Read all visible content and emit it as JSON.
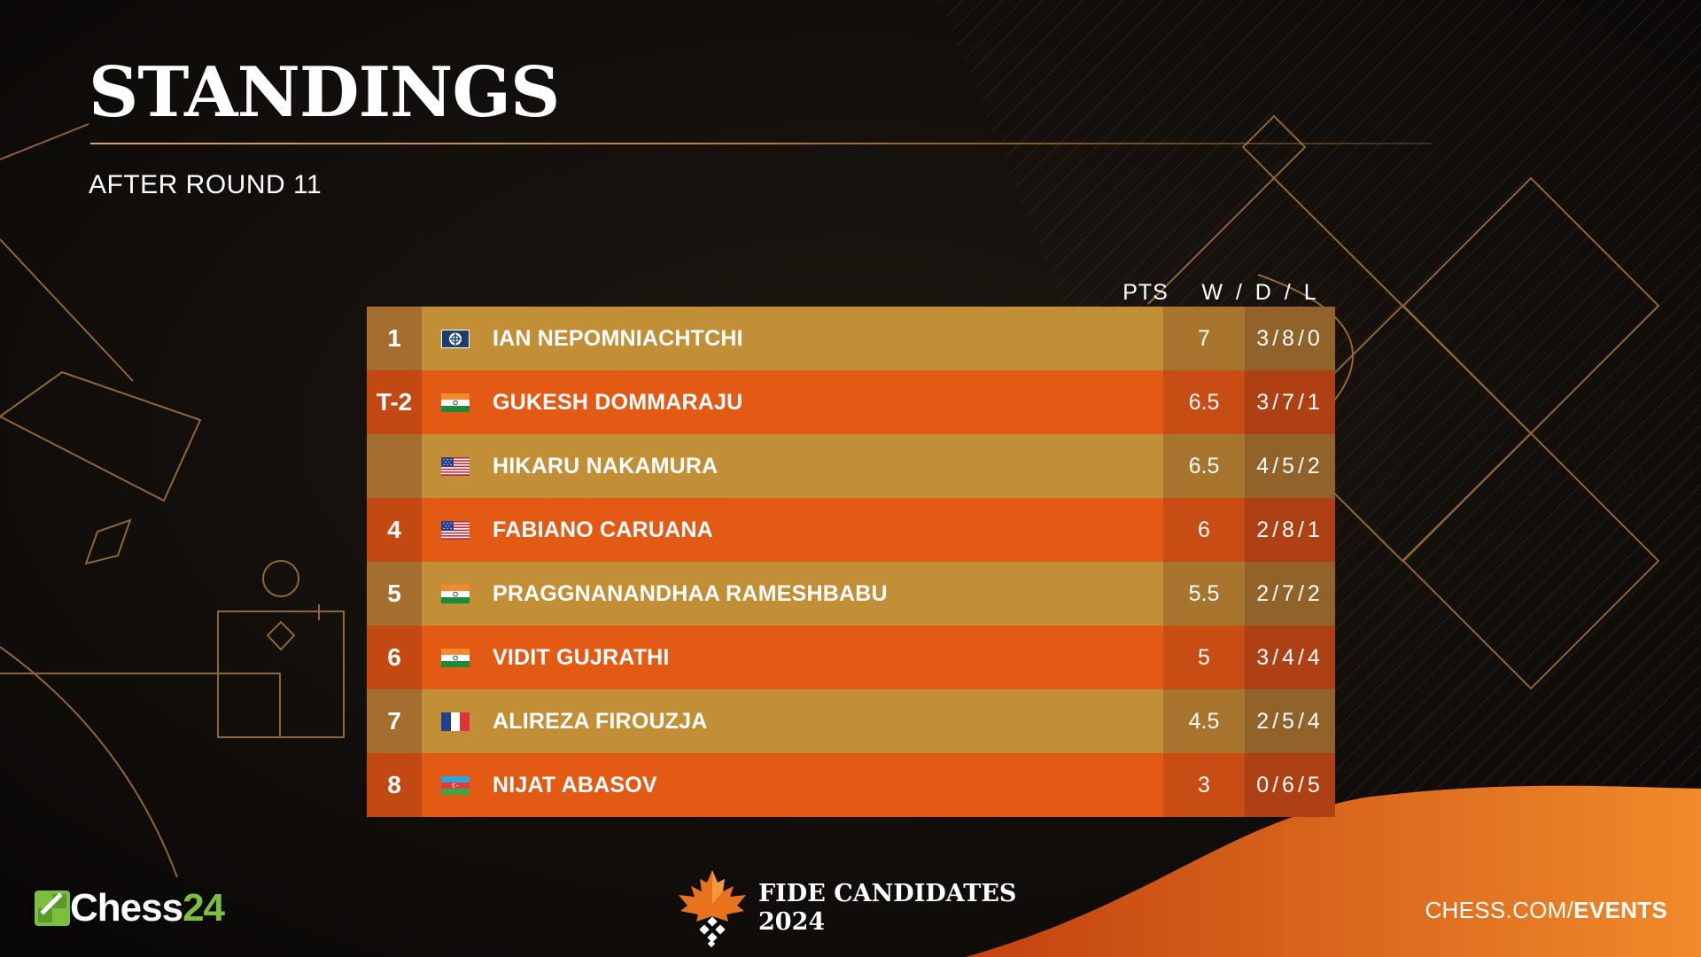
{
  "header": {
    "title": "STANDINGS",
    "subtitle": "AFTER ROUND 11"
  },
  "columns": {
    "points": "PTS",
    "wdl": "W / D / L"
  },
  "standings": [
    {
      "rank": "1",
      "flag": "fide-flag-icon",
      "name": "IAN NEPOMNIACHTCHI",
      "points": "7",
      "wdl": "3/8/0",
      "style": "gold"
    },
    {
      "rank": "T-2",
      "flag": "india-flag-icon",
      "name": "GUKESH DOMMARAJU",
      "points": "6.5",
      "wdl": "3/7/1",
      "style": "orange"
    },
    {
      "rank": "",
      "flag": "usa-flag-icon",
      "name": "HIKARU NAKAMURA",
      "points": "6.5",
      "wdl": "4/5/2",
      "style": "gold"
    },
    {
      "rank": "4",
      "flag": "usa-flag-icon",
      "name": "FABIANO CARUANA",
      "points": "6",
      "wdl": "2/8/1",
      "style": "orange"
    },
    {
      "rank": "5",
      "flag": "india-flag-icon",
      "name": "PRAGGNANANDHAA RAMESHBABU",
      "points": "5.5",
      "wdl": "2/7/2",
      "style": "gold"
    },
    {
      "rank": "6",
      "flag": "india-flag-icon",
      "name": "VIDIT GUJRATHI",
      "points": "5",
      "wdl": "3/4/4",
      "style": "orange"
    },
    {
      "rank": "7",
      "flag": "france-flag-icon",
      "name": "ALIREZA FIROUZJA",
      "points": "4.5",
      "wdl": "2/5/4",
      "style": "gold"
    },
    {
      "rank": "8",
      "flag": "azerbaijan-flag-icon",
      "name": "NIJAT ABASOV",
      "points": "3",
      "wdl": "0/6/5",
      "style": "orange"
    }
  ],
  "footer": {
    "chess24": {
      "text": "Chess",
      "num": "24"
    },
    "event": {
      "line1": "FIDE CANDIDATES",
      "line2": "2024"
    },
    "url": {
      "prefix": "CHESS.COM/",
      "bold": "EVENTS"
    }
  },
  "colors": {
    "gold_row": "#c28e36",
    "orange_row": "#e35a15",
    "accent_line": "#d9a45a",
    "chess24_green": "#7bbf3c"
  }
}
